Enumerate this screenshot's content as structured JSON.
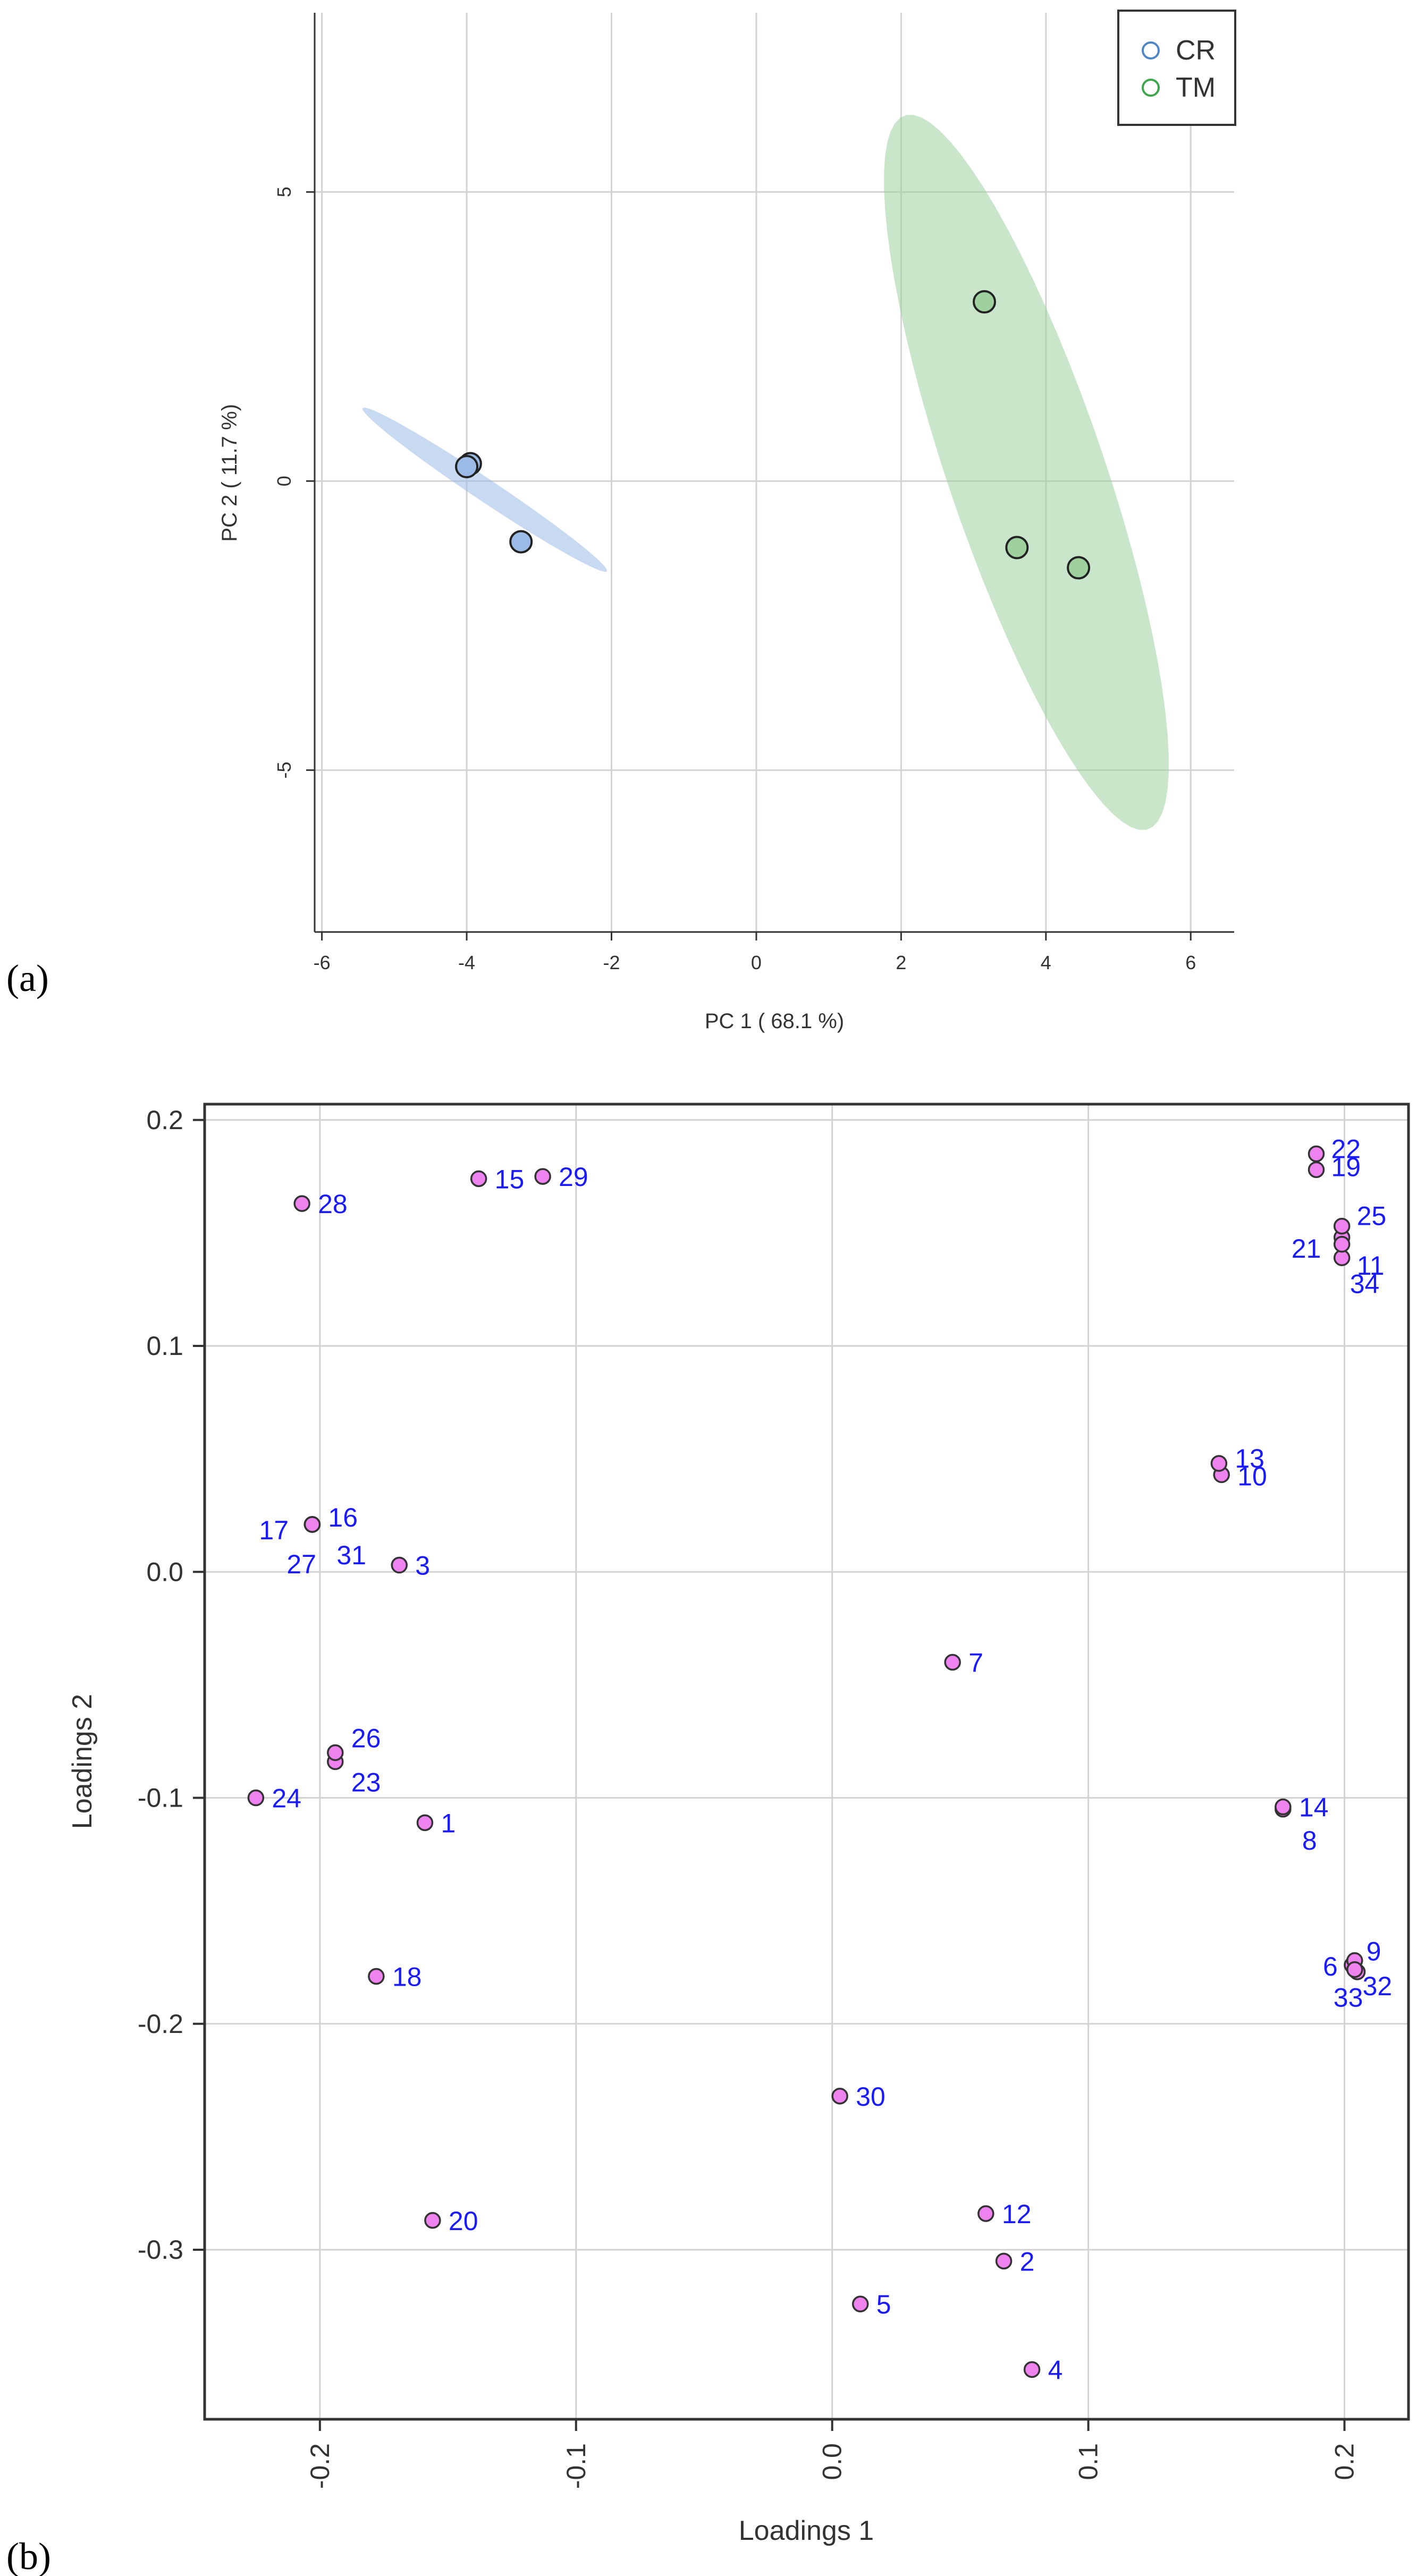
{
  "panel_a_label": "(a)",
  "panel_b_label": "(b)",
  "chart_data": [
    {
      "type": "scatter",
      "xlabel": "PC 1 ( 68.1 %)",
      "ylabel": "PC 2 ( 11.7 %)",
      "xlim": [
        -6.1,
        6.6
      ],
      "ylim": [
        -7.8,
        8.1
      ],
      "xticks": [
        -6,
        -4,
        -2,
        0,
        2,
        4,
        6
      ],
      "yticks": [
        -5,
        0,
        5
      ],
      "grid": true,
      "legend_position": "top-right",
      "series": [
        {
          "name": "CR",
          "color": "#4f86c6",
          "fill": "#9bbbe6",
          "points": [
            [
              -3.95,
              0.3
            ],
            [
              -4.0,
              0.25
            ],
            [
              -3.25,
              -1.05
            ]
          ],
          "ellipse": {
            "center": [
              -3.75,
              -0.15
            ],
            "semi_axes": [
              2.2,
              0.18
            ],
            "angle_deg": -40
          }
        },
        {
          "name": "TM",
          "color": "#3da64a",
          "fill": "#9fd19f",
          "points": [
            [
              3.15,
              3.1
            ],
            [
              3.6,
              -1.15
            ],
            [
              4.45,
              -1.5
            ]
          ],
          "ellipse": {
            "center": [
              3.73,
              0.15
            ],
            "semi_axes": [
              1.1,
              6.4
            ],
            "angle_deg": 15
          }
        }
      ]
    },
    {
      "type": "scatter",
      "xlabel": "Loadings 1",
      "ylabel": "Loadings 2",
      "xlim": [
        -0.245,
        0.225
      ],
      "ylim": [
        -0.375,
        0.207
      ],
      "xticks": [
        "-0.2",
        "-0.1",
        "0.0",
        "0.1",
        "0.2"
      ],
      "yticks": [
        "0.2",
        "0.1",
        "0.0",
        "-0.1",
        "-0.2",
        "-0.3"
      ],
      "grid": true,
      "marker_fill": "#ee82ee",
      "marker_stroke": "#333333",
      "label_color": "#1a1aff",
      "points": [
        {
          "label": "1",
          "x": -0.159,
          "y": -0.111
        },
        {
          "label": "2",
          "x": 0.067,
          "y": -0.305
        },
        {
          "label": "3",
          "x": -0.169,
          "y": 0.003
        },
        {
          "label": "4",
          "x": 0.078,
          "y": -0.353
        },
        {
          "label": "5",
          "x": 0.011,
          "y": -0.324
        },
        {
          "label": "6",
          "x": 0.203,
          "y": -0.174
        },
        {
          "label": "7",
          "x": 0.047,
          "y": -0.04
        },
        {
          "label": "8",
          "x": 0.176,
          "y": -0.105
        },
        {
          "label": "9",
          "x": 0.204,
          "y": -0.172
        },
        {
          "label": "10",
          "x": 0.152,
          "y": 0.043
        },
        {
          "label": "11",
          "x": 0.199,
          "y": 0.139
        },
        {
          "label": "12",
          "x": 0.06,
          "y": -0.284
        },
        {
          "label": "13",
          "x": 0.151,
          "y": 0.048
        },
        {
          "label": "14",
          "x": 0.176,
          "y": -0.104
        },
        {
          "label": "15",
          "x": -0.138,
          "y": 0.174
        },
        {
          "label": "16",
          "x": -0.203,
          "y": 0.021
        },
        {
          "label": "17",
          "x": -0.203,
          "y": 0.021
        },
        {
          "label": "18",
          "x": -0.178,
          "y": -0.179
        },
        {
          "label": "19",
          "x": 0.189,
          "y": 0.178
        },
        {
          "label": "20",
          "x": -0.156,
          "y": -0.287
        },
        {
          "label": "21",
          "x": 0.199,
          "y": 0.148
        },
        {
          "label": "22",
          "x": 0.189,
          "y": 0.185
        },
        {
          "label": "23",
          "x": -0.194,
          "y": -0.084
        },
        {
          "label": "24",
          "x": -0.225,
          "y": -0.1
        },
        {
          "label": "25",
          "x": 0.199,
          "y": 0.153
        },
        {
          "label": "26",
          "x": -0.194,
          "y": -0.08
        },
        {
          "label": "27",
          "x": -0.203,
          "y": 0.021
        },
        {
          "label": "28",
          "x": -0.207,
          "y": 0.163
        },
        {
          "label": "29",
          "x": -0.113,
          "y": 0.175
        },
        {
          "label": "30",
          "x": 0.003,
          "y": -0.232
        },
        {
          "label": "31",
          "x": -0.203,
          "y": 0.021
        },
        {
          "label": "32",
          "x": 0.205,
          "y": -0.177
        },
        {
          "label": "33",
          "x": 0.204,
          "y": -0.176
        },
        {
          "label": "34",
          "x": 0.199,
          "y": 0.145
        }
      ]
    }
  ]
}
